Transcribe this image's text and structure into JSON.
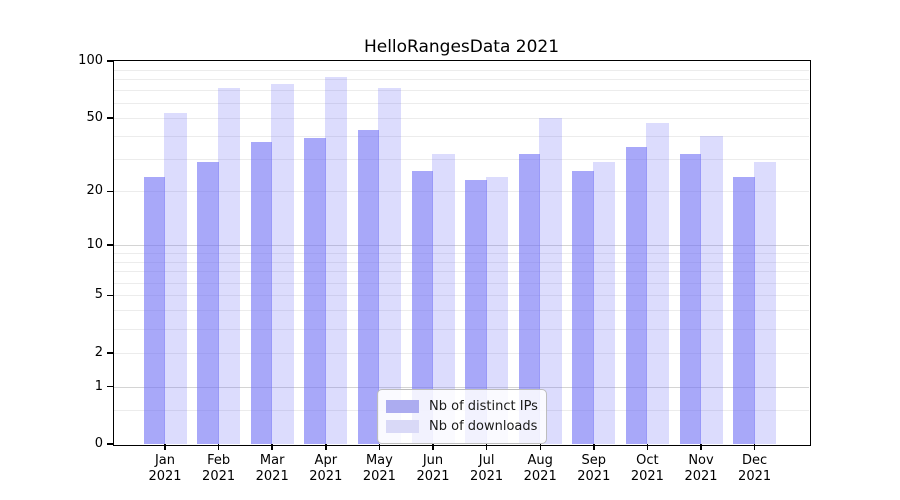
{
  "title": "HelloRangesData 2021",
  "colors": {
    "bar_distinct_ips": "rgba(110,110,245,0.60)",
    "bar_downloads": "rgba(110,110,245,0.24)",
    "legend_swatch_distinct_ips": "#acacf0",
    "legend_swatch_downloads": "#d9d9f7",
    "grid_major": "#d4d4d4",
    "grid_minor": "#ececec",
    "axis": "#000000"
  },
  "legend": {
    "items": [
      {
        "label": "Nb of distinct IPs"
      },
      {
        "label": "Nb of downloads"
      }
    ]
  },
  "chart_data": {
    "type": "bar",
    "title": "HelloRangesData 2021",
    "x": {
      "months": [
        "Jan",
        "Feb",
        "Mar",
        "Apr",
        "May",
        "Jun",
        "Jul",
        "Aug",
        "Sep",
        "Oct",
        "Nov",
        "Dec"
      ],
      "year": "2021"
    },
    "series": [
      {
        "name": "Nb of distinct IPs",
        "values": [
          24,
          29,
          37,
          39,
          43,
          26,
          23,
          32,
          26,
          35,
          32,
          24
        ]
      },
      {
        "name": "Nb of downloads",
        "values": [
          53,
          72,
          76,
          82,
          72,
          32,
          24,
          50,
          29,
          47,
          40,
          29
        ]
      }
    ],
    "y_axis": {
      "scale": "symlog (position proportional to log10(1+v))",
      "tick_values": [
        0,
        1,
        2,
        5,
        10,
        20,
        50,
        100
      ],
      "min": 0,
      "max": 100,
      "minor_grid_values": [
        0.5,
        2,
        3,
        4,
        5,
        6,
        7,
        8,
        9,
        20,
        30,
        40,
        50,
        60,
        70,
        80,
        90
      ],
      "major_grid_values": [
        1,
        10
      ]
    },
    "grid": "on",
    "legend_position": "lower center, inside plot area"
  }
}
